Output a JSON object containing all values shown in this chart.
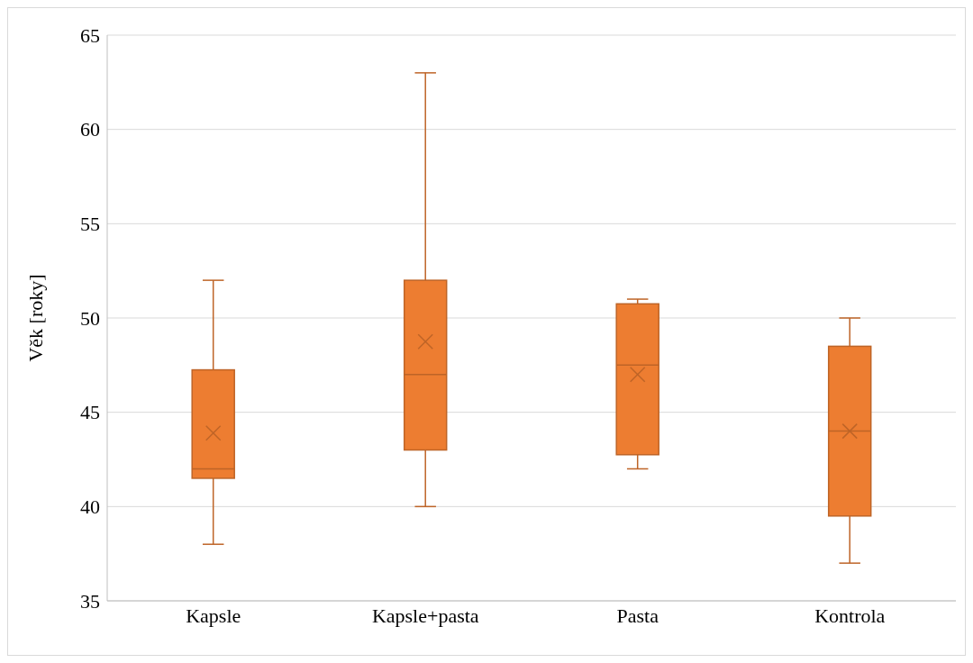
{
  "chart_data": {
    "type": "box",
    "ylabel": "Věk [roky]",
    "categories": [
      "Kapsle",
      "Kapsle+pasta",
      "Pasta",
      "Kontrola"
    ],
    "color": "#ed7d31",
    "boxes": [
      {
        "low": 38,
        "q1": 41.5,
        "median": 42,
        "q3": 47.25,
        "high": 52,
        "mean": 43.9
      },
      {
        "low": 40,
        "q1": 43,
        "median": 47,
        "q3": 52,
        "high": 63,
        "mean": 48.75
      },
      {
        "low": 42,
        "q1": 42.75,
        "median": 47.5,
        "q3": 50.75,
        "high": 51,
        "mean": 47
      },
      {
        "low": 37,
        "q1": 39.5,
        "median": 44,
        "q3": 48.5,
        "high": 50,
        "mean": 44
      }
    ],
    "ylim": [
      35,
      65
    ],
    "yticks": [
      35,
      40,
      45,
      50,
      55,
      60,
      65
    ],
    "grid": "y"
  }
}
